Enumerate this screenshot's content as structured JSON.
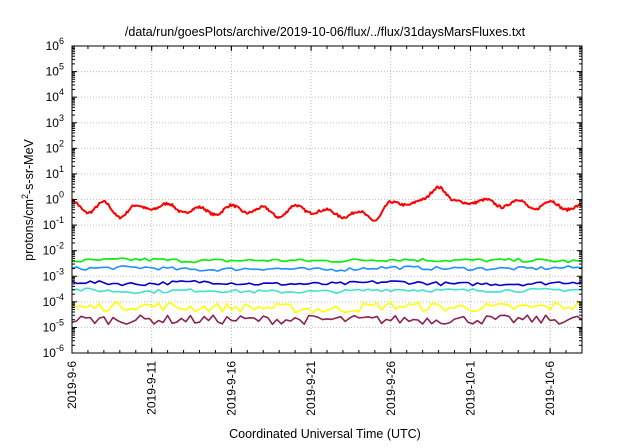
{
  "chart_data": {
    "type": "line",
    "title": "/data/run/goesPlots/archive/2019-10-06/flux/../flux/31daysMarsFluxes.txt",
    "xlabel": "Coordinated Universal Time (UTC)",
    "ylabel_parts": [
      "protons/cm",
      "2",
      "-s-sr-MeV"
    ],
    "y_scale": "log",
    "ylim": [
      1e-06,
      1000000.0
    ],
    "xlim": [
      "2019-09-06",
      "2019-10-08"
    ],
    "grid": true,
    "y_ticks": [
      {
        "base": "10",
        "exp": "-6",
        "value": 1e-06
      },
      {
        "base": "10",
        "exp": "-5",
        "value": 1e-05
      },
      {
        "base": "10",
        "exp": "-4",
        "value": 0.0001
      },
      {
        "base": "10",
        "exp": "-3",
        "value": 0.001
      },
      {
        "base": "10",
        "exp": "-2",
        "value": 0.01
      },
      {
        "base": "10",
        "exp": "-1",
        "value": 0.1
      },
      {
        "base": "10",
        "exp": "0",
        "value": 1
      },
      {
        "base": "10",
        "exp": "1",
        "value": 10.0
      },
      {
        "base": "10",
        "exp": "2",
        "value": 100.0
      },
      {
        "base": "10",
        "exp": "3",
        "value": 1000.0
      },
      {
        "base": "10",
        "exp": "4",
        "value": 10000.0
      },
      {
        "base": "10",
        "exp": "5",
        "value": 100000.0
      },
      {
        "base": "10",
        "exp": "6",
        "value": 1000000.0
      }
    ],
    "x_ticks": [
      {
        "label": "2019-9-6",
        "date": "2019-09-06"
      },
      {
        "label": "2019-9-11",
        "date": "2019-09-11"
      },
      {
        "label": "2019-9-16",
        "date": "2019-09-16"
      },
      {
        "label": "2019-9-21",
        "date": "2019-09-21"
      },
      {
        "label": "2019-9-26",
        "date": "2019-09-26"
      },
      {
        "label": "2019-10-1",
        "date": "2019-10-01"
      },
      {
        "label": "2019-10-6",
        "date": "2019-10-06"
      }
    ],
    "series": [
      {
        "color": "#ff0000",
        "values": [
          [
            "2019-09-06",
            0.9
          ],
          [
            "2019-09-07",
            0.3
          ],
          [
            "2019-09-08",
            0.8
          ],
          [
            "2019-09-09",
            0.2
          ],
          [
            "2019-09-10",
            0.6
          ],
          [
            "2019-09-11",
            0.4
          ],
          [
            "2019-09-12",
            0.7
          ],
          [
            "2019-09-13",
            0.3
          ],
          [
            "2019-09-14",
            0.5
          ],
          [
            "2019-09-15",
            0.25
          ],
          [
            "2019-09-16",
            0.6
          ],
          [
            "2019-09-17",
            0.3
          ],
          [
            "2019-09-18",
            0.5
          ],
          [
            "2019-09-19",
            0.2
          ],
          [
            "2019-09-20",
            0.6
          ],
          [
            "2019-09-21",
            0.3
          ],
          [
            "2019-09-22",
            0.4
          ],
          [
            "2019-09-23",
            0.2
          ],
          [
            "2019-09-24",
            0.35
          ],
          [
            "2019-09-25",
            0.15
          ],
          [
            "2019-09-26",
            0.8
          ],
          [
            "2019-09-27",
            0.6
          ],
          [
            "2019-09-28",
            1.0
          ],
          [
            "2019-09-29",
            3.0
          ],
          [
            "2019-09-30",
            0.9
          ],
          [
            "2019-10-01",
            0.7
          ],
          [
            "2019-10-02",
            1.0
          ],
          [
            "2019-10-03",
            0.5
          ],
          [
            "2019-10-04",
            1.0
          ],
          [
            "2019-10-05",
            0.4
          ],
          [
            "2019-10-06",
            0.9
          ],
          [
            "2019-10-07",
            0.4
          ],
          [
            "2019-10-08",
            0.6
          ]
        ]
      },
      {
        "color": "#00ee00",
        "values": [
          [
            "2019-09-06",
            0.004
          ],
          [
            "2019-09-10",
            0.0045
          ],
          [
            "2019-09-14",
            0.004
          ],
          [
            "2019-09-18",
            0.0042
          ],
          [
            "2019-09-22",
            0.004
          ],
          [
            "2019-09-26",
            0.0045
          ],
          [
            "2019-09-30",
            0.0042
          ],
          [
            "2019-10-04",
            0.0042
          ],
          [
            "2019-10-08",
            0.0038
          ]
        ]
      },
      {
        "color": "#1e90ff",
        "values": [
          [
            "2019-09-06",
            0.002
          ],
          [
            "2019-09-10",
            0.0022
          ],
          [
            "2019-09-14",
            0.0018
          ],
          [
            "2019-09-18",
            0.002
          ],
          [
            "2019-09-22",
            0.0018
          ],
          [
            "2019-09-26",
            0.0022
          ],
          [
            "2019-09-30",
            0.002
          ],
          [
            "2019-10-04",
            0.002
          ],
          [
            "2019-10-08",
            0.0022
          ]
        ]
      },
      {
        "color": "#0000cd",
        "values": [
          [
            "2019-09-06",
            0.0006
          ],
          [
            "2019-09-10",
            0.0005
          ],
          [
            "2019-09-14",
            0.0006
          ],
          [
            "2019-09-18",
            0.0005
          ],
          [
            "2019-09-22",
            0.0005
          ],
          [
            "2019-09-26",
            0.0006
          ],
          [
            "2019-09-30",
            0.0005
          ],
          [
            "2019-10-04",
            0.0005
          ],
          [
            "2019-10-08",
            0.0006
          ]
        ]
      },
      {
        "color": "#40e0d0",
        "values": [
          [
            "2019-09-06",
            0.0003
          ],
          [
            "2019-09-10",
            0.00025
          ],
          [
            "2019-09-14",
            0.00028
          ],
          [
            "2019-09-18",
            0.00025
          ],
          [
            "2019-09-22",
            0.00025
          ],
          [
            "2019-09-26",
            0.0003
          ],
          [
            "2019-09-30",
            0.00028
          ],
          [
            "2019-10-04",
            0.00028
          ],
          [
            "2019-10-08",
            0.0003
          ]
        ]
      },
      {
        "color": "#ffff00",
        "values": [
          [
            "2019-09-06",
            6e-05
          ],
          [
            "2019-09-10",
            7e-05
          ],
          [
            "2019-09-14",
            6e-05
          ],
          [
            "2019-09-18",
            6e-05
          ],
          [
            "2019-09-22",
            5e-05
          ],
          [
            "2019-09-26",
            7e-05
          ],
          [
            "2019-09-30",
            6e-05
          ],
          [
            "2019-10-04",
            6e-05
          ],
          [
            "2019-10-08",
            7e-05
          ]
        ]
      },
      {
        "color": "#8b2252",
        "values": [
          [
            "2019-09-06",
            2e-05
          ],
          [
            "2019-09-10",
            2e-05
          ],
          [
            "2019-09-14",
            2e-05
          ],
          [
            "2019-09-18",
            2e-05
          ],
          [
            "2019-09-22",
            2e-05
          ],
          [
            "2019-09-26",
            2e-05
          ],
          [
            "2019-09-30",
            2e-05
          ],
          [
            "2019-10-04",
            2e-05
          ],
          [
            "2019-10-08",
            2e-05
          ]
        ]
      }
    ]
  }
}
